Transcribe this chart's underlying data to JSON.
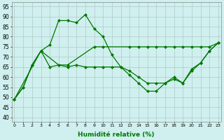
{
  "line1_x": [
    0,
    1,
    2,
    3,
    4,
    5,
    6,
    7,
    8,
    9,
    10,
    11,
    12,
    13,
    14,
    15,
    16,
    17,
    18,
    19,
    20,
    21,
    22,
    23
  ],
  "line1_y": [
    49,
    55,
    66,
    73,
    76,
    88,
    88,
    87,
    91,
    84,
    80,
    71,
    65,
    61,
    57,
    53,
    53,
    57,
    60,
    57,
    64,
    67,
    73,
    77
  ],
  "line2_x": [
    0,
    3,
    5,
    6,
    9,
    10,
    13,
    14,
    15,
    16,
    17,
    18,
    19,
    20,
    21,
    22,
    23
  ],
  "line2_y": [
    49,
    73,
    66,
    66,
    75,
    75,
    75,
    75,
    75,
    75,
    75,
    75,
    75,
    75,
    75,
    75,
    77
  ],
  "line3_x": [
    0,
    1,
    2,
    3,
    4,
    5,
    6,
    7,
    8,
    9,
    10,
    11,
    12,
    13,
    14,
    15,
    16,
    17,
    18,
    19,
    20,
    21,
    22,
    23
  ],
  "line3_y": [
    49,
    55,
    66,
    73,
    65,
    66,
    65,
    66,
    65,
    65,
    65,
    65,
    65,
    63,
    60,
    57,
    57,
    57,
    59,
    57,
    63,
    67,
    73,
    77
  ],
  "color": "#007700",
  "markersize": 2.5,
  "xlabel": "Humidité relative (%)",
  "yticks": [
    40,
    45,
    50,
    55,
    60,
    65,
    70,
    75,
    80,
    85,
    90,
    95
  ],
  "xticks": [
    0,
    1,
    2,
    3,
    4,
    5,
    6,
    7,
    8,
    9,
    10,
    11,
    12,
    13,
    14,
    15,
    16,
    17,
    18,
    19,
    20,
    21,
    22,
    23
  ],
  "xlim": [
    -0.3,
    23.3
  ],
  "ylim": [
    38,
    97
  ],
  "bg_color": "#cff0ee",
  "grid_color": "#b0c8c8"
}
